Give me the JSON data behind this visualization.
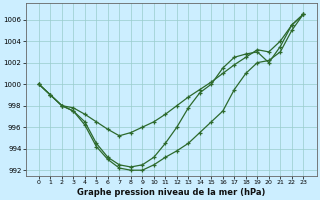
{
  "title": "Graphe pression niveau de la mer (hPa)",
  "bg_color": "#cceeff",
  "grid_color": "#99cccc",
  "line_color": "#2d6a2d",
  "hours": [
    0,
    1,
    2,
    3,
    4,
    5,
    6,
    7,
    8,
    9,
    10,
    11,
    12,
    13,
    14,
    15,
    16,
    17,
    18,
    19,
    20,
    21,
    22,
    23
  ],
  "series1": [
    1000,
    999,
    998,
    997.8,
    997.2,
    996.5,
    995.8,
    995.2,
    995.5,
    996,
    996.5,
    997.2,
    998,
    998.8,
    999.5,
    1000.2,
    1001,
    1001.8,
    1002.5,
    1003.2,
    1003,
    1004,
    1005.5,
    1006.5
  ],
  "series2": [
    1000,
    999,
    998,
    997.5,
    996.2,
    994.2,
    993.0,
    992.2,
    992.0,
    992.0,
    992.5,
    993.2,
    993.8,
    994.5,
    995.5,
    996.5,
    997.5,
    999.5,
    1001.0,
    1002.0,
    1002.2,
    1003.0,
    1005.0,
    1006.5
  ],
  "series3": [
    1000,
    999,
    998,
    997.5,
    996.5,
    994.5,
    993.2,
    992.5,
    992.3,
    992.5,
    993.2,
    994.5,
    996.0,
    997.8,
    999.2,
    1000.0,
    1001.5,
    1002.5,
    1002.8,
    1003.0,
    1002.0,
    1003.5,
    1005.5,
    1006.5
  ],
  "ylim": [
    991.5,
    1007.5
  ],
  "yticks": [
    992,
    994,
    996,
    998,
    1000,
    1002,
    1004,
    1006
  ],
  "xticks": [
    0,
    1,
    2,
    3,
    4,
    5,
    6,
    7,
    8,
    9,
    10,
    11,
    12,
    13,
    14,
    15,
    16,
    17,
    18,
    19,
    20,
    21,
    22,
    23
  ]
}
